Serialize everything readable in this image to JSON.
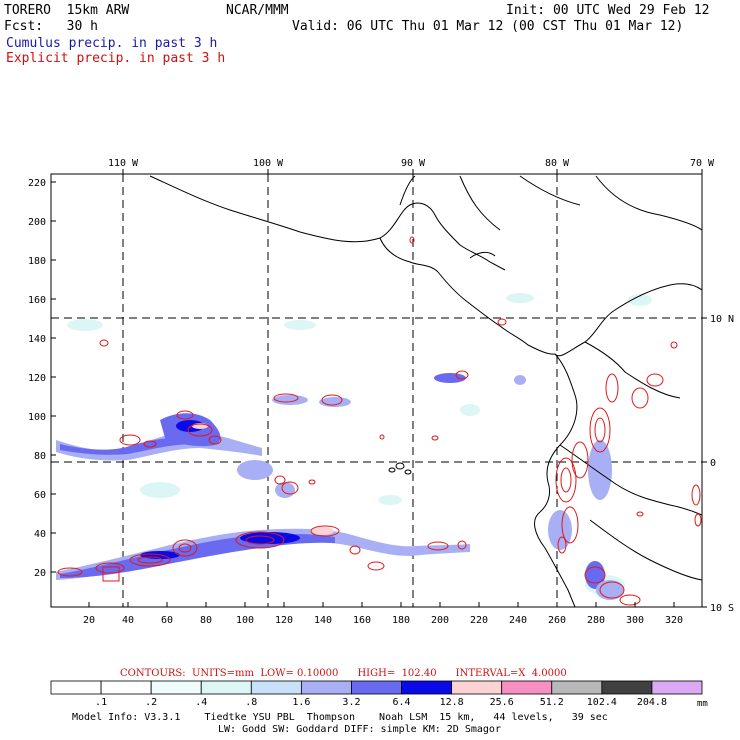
{
  "header": {
    "model_name": "TORERO  15km ARW",
    "institution": "NCAR/MMM",
    "init": "Init: 00 UTC Wed 29 Feb 12",
    "forecast": "Fcst:   30 h",
    "valid": "Valid: 06 UTC Thu 01 Mar 12 (00 CST Thu 01 Mar 12)",
    "cumulus_label": "Cumulus precip. in past 3 h",
    "explicit_label": "Explicit precip. in past 3 h"
  },
  "colors": {
    "cumulus": "#1a1aa8",
    "explicit": "#d01010",
    "contour": "#e01818"
  },
  "map": {
    "top_lon_labels": [
      "110 W",
      "100 W",
      "90 W",
      "80 W",
      "70 W"
    ],
    "right_lat_labels": [
      "10 N",
      "0",
      "10 S"
    ],
    "y_axis_ticks": [
      "220",
      "200",
      "180",
      "160",
      "140",
      "120",
      "100",
      "80",
      "60",
      "40",
      "20"
    ],
    "x_axis_ticks": [
      "20",
      "40",
      "60",
      "80",
      "100",
      "120",
      "140",
      "160",
      "180",
      "200",
      "220",
      "240",
      "260",
      "280",
      "300",
      "320"
    ]
  },
  "contour_info": {
    "label": "CONTOURS:  UNITS=mm  LOW= 0.10000      HIGH=  102.40      INTERVAL=X  4.0000"
  },
  "colorbar": {
    "levels": [
      ".1",
      ".2",
      ".4",
      ".8",
      "1.6",
      "3.2",
      "6.4",
      "12.8",
      "25.6",
      "51.2",
      "102.4",
      "204.8"
    ],
    "colors": [
      "#ffffff",
      "#ffffff",
      "#eefcfc",
      "#dcf5f5",
      "#c8e0f8",
      "#a8aff4",
      "#6a6af0",
      "#0a0ae8",
      "#fcd2d2",
      "#f690c0",
      "#b8b8b8",
      "#404040",
      "#dcaaf4"
    ],
    "unit": "mm"
  },
  "footer": {
    "line1": "Model Info: V3.3.1    Tiedtke YSU PBL  Thompson    Noah LSM  15 km,   44 levels,   39 sec",
    "line2": "LW: Godd SW: Goddard DIFF: simple KM: 2D Smagor"
  }
}
